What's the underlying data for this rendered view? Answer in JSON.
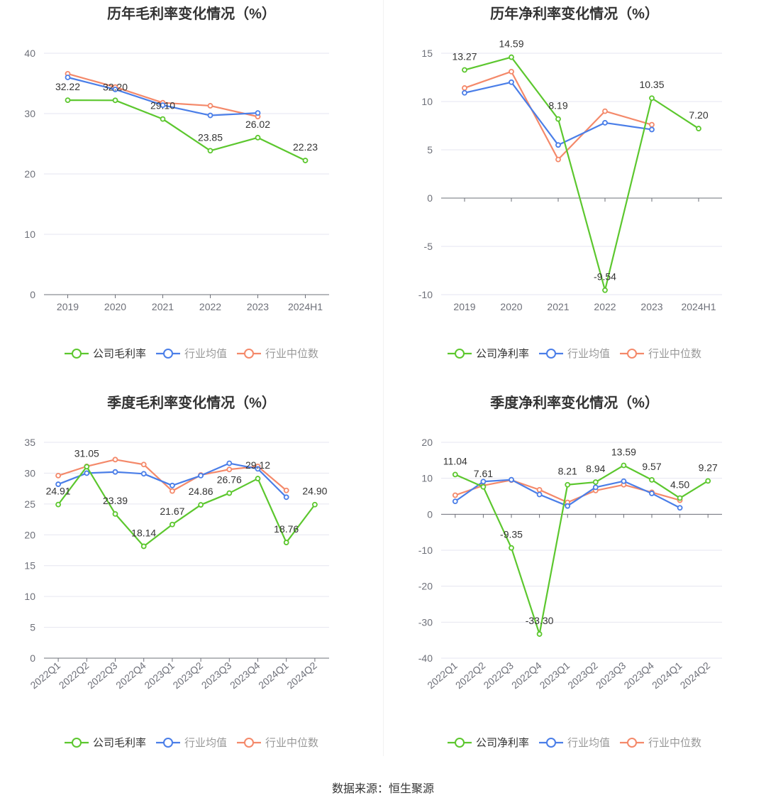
{
  "source": "数据来源：恒生聚源",
  "legend_labels": {
    "gross": [
      "公司毛利率",
      "行业均值",
      "行业中位数"
    ],
    "net": [
      "公司净利率",
      "行业均值",
      "行业中位数"
    ]
  },
  "colors": {
    "company": "#5cc72e",
    "avg": "#4a7ee8",
    "median": "#f4896a",
    "grid": "#e6e6f0",
    "axis": "#6e7079",
    "text": "#333333"
  },
  "chart_data": [
    {
      "type": "line",
      "title": "历年毛利率变化情况（%）",
      "categories": [
        "2019",
        "2020",
        "2021",
        "2022",
        "2023",
        "2024H1"
      ],
      "ylim": [
        0,
        40
      ],
      "yticks": [
        0,
        10,
        20,
        30,
        40
      ],
      "series": [
        {
          "name": "公司毛利率",
          "values": [
            32.22,
            32.2,
            29.1,
            23.85,
            26.02,
            22.23
          ],
          "labels": [
            "32.22",
            "32.20",
            "29.10",
            "23.85",
            "26.02",
            "22.23"
          ]
        },
        {
          "name": "行业均值",
          "values": [
            36.0,
            34.0,
            31.4,
            29.7,
            30.1,
            null
          ]
        },
        {
          "name": "行业中位数",
          "values": [
            36.6,
            34.4,
            31.8,
            31.3,
            29.5,
            null
          ]
        }
      ],
      "grid": true,
      "legend": "bottom"
    },
    {
      "type": "line",
      "title": "历年净利率变化情况（%）",
      "categories": [
        "2019",
        "2020",
        "2021",
        "2022",
        "2023",
        "2024H1"
      ],
      "ylim": [
        -10,
        15
      ],
      "yticks": [
        -10,
        -5,
        0,
        5,
        10,
        15
      ],
      "series": [
        {
          "name": "公司净利率",
          "values": [
            13.27,
            14.59,
            8.19,
            -9.54,
            10.35,
            7.2
          ],
          "labels": [
            "13.27",
            "14.59",
            "8.19",
            "-9.54",
            "10.35",
            "7.20"
          ]
        },
        {
          "name": "行业均值",
          "values": [
            10.9,
            12.0,
            5.5,
            7.8,
            7.1,
            null
          ]
        },
        {
          "name": "行业中位数",
          "values": [
            11.4,
            13.1,
            4.0,
            9.0,
            7.6,
            null
          ]
        }
      ],
      "grid": true,
      "legend": "bottom"
    },
    {
      "type": "line",
      "title": "季度毛利率变化情况（%）",
      "categories": [
        "2022Q1",
        "2022Q2",
        "2022Q3",
        "2022Q4",
        "2023Q1",
        "2023Q2",
        "2023Q3",
        "2023Q4",
        "2024Q1",
        "2024Q2"
      ],
      "ylim": [
        0,
        35
      ],
      "yticks": [
        0,
        5,
        10,
        15,
        20,
        25,
        30,
        35
      ],
      "series": [
        {
          "name": "公司毛利率",
          "values": [
            24.91,
            31.05,
            23.39,
            18.14,
            21.67,
            24.86,
            26.76,
            29.12,
            18.76,
            24.9
          ],
          "labels": [
            "24.91",
            "31.05",
            "23.39",
            "18.14",
            "21.67",
            "24.86",
            "26.76",
            "29.12",
            "18.76",
            "24.90"
          ]
        },
        {
          "name": "行业均值",
          "values": [
            28.2,
            30.0,
            30.2,
            29.9,
            28.0,
            29.6,
            31.6,
            30.7,
            26.1,
            null
          ]
        },
        {
          "name": "行业中位数",
          "values": [
            29.6,
            31.1,
            32.2,
            31.4,
            27.1,
            29.7,
            30.6,
            31.1,
            27.2,
            null
          ]
        }
      ],
      "grid": true,
      "legend": "bottom"
    },
    {
      "type": "line",
      "title": "季度净利率变化情况（%）",
      "categories": [
        "2022Q1",
        "2022Q2",
        "2022Q3",
        "2022Q4",
        "2023Q1",
        "2023Q2",
        "2023Q3",
        "2023Q4",
        "2024Q1",
        "2024Q2"
      ],
      "ylim": [
        -40,
        20
      ],
      "yticks": [
        -40,
        -30,
        -20,
        -10,
        0,
        10,
        20
      ],
      "series": [
        {
          "name": "公司净利率",
          "values": [
            11.04,
            7.61,
            -9.35,
            -33.3,
            8.21,
            8.94,
            13.59,
            9.57,
            4.5,
            9.27
          ],
          "labels": [
            "11.04",
            "7.61",
            "-9.35",
            "-33.30",
            "8.21",
            "8.94",
            "13.59",
            "9.57",
            "4.50",
            "9.27"
          ]
        },
        {
          "name": "行业均值",
          "values": [
            3.6,
            9.1,
            9.6,
            5.5,
            2.3,
            7.5,
            9.2,
            5.8,
            1.8,
            null
          ]
        },
        {
          "name": "行业中位数",
          "values": [
            5.3,
            8.0,
            9.5,
            6.8,
            3.3,
            6.6,
            8.2,
            6.1,
            3.9,
            null
          ]
        }
      ],
      "grid": true,
      "legend": "bottom"
    }
  ]
}
